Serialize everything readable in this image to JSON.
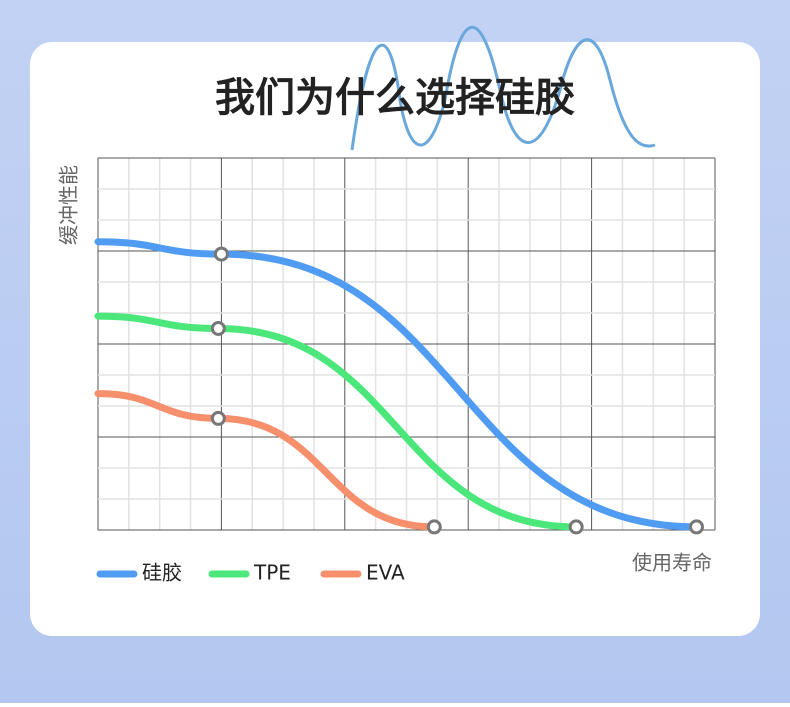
{
  "chart_data": {
    "type": "line",
    "title": "我们为什么选择硅胶",
    "ylabel": "缓冲性能",
    "xlabel": "使用寿命",
    "xlim": [
      0,
      20
    ],
    "ylim": [
      0,
      12
    ],
    "series": [
      {
        "name": "硅胶",
        "color": "#4f9cf2",
        "x": [
          0,
          4,
          19.4
        ],
        "values": [
          9.3,
          8.9,
          0.1
        ]
      },
      {
        "name": "TPE",
        "color": "#4be77a",
        "x": [
          0,
          3.9,
          15.5
        ],
        "values": [
          6.9,
          6.5,
          0.1
        ]
      },
      {
        "name": "EVA",
        "color": "#f58f6c",
        "x": [
          0,
          3.9,
          10.9
        ],
        "values": [
          4.4,
          3.6,
          0.1
        ]
      }
    ]
  }
}
